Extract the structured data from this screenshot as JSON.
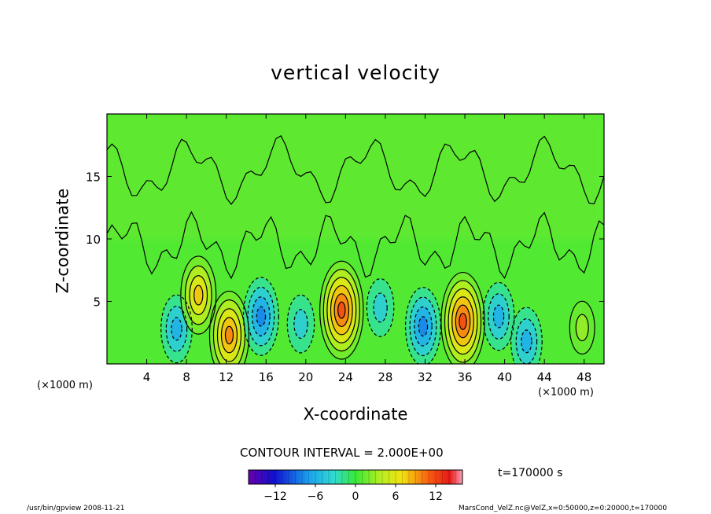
{
  "chart_data": {
    "type": "heatmap",
    "title": "vertical velocity",
    "xlabel": "X-coordinate",
    "ylabel": "Z-coordinate",
    "x_unit_note_left": "(×1000 m)",
    "x_unit_note_right": "(×1000 m)",
    "xlim": [
      0,
      50
    ],
    "ylim": [
      0,
      20
    ],
    "x_ticks": [
      4,
      8,
      12,
      16,
      20,
      24,
      28,
      32,
      36,
      40,
      44,
      48
    ],
    "y_ticks": [
      5,
      10,
      15
    ],
    "contour_interval_text": "CONTOUR INTERVAL = 2.000E+00",
    "time_text": "t=170000 s",
    "colorbar": {
      "ticks": [
        -12,
        -6,
        0,
        6,
        12
      ],
      "range": [
        -16,
        16
      ]
    },
    "cells": [
      {
        "x": 7.0,
        "z": 2.8,
        "value": -6
      },
      {
        "x": 9.2,
        "z": 5.5,
        "value": 8
      },
      {
        "x": 12.3,
        "z": 2.3,
        "value": 10
      },
      {
        "x": 15.5,
        "z": 3.8,
        "value": -8
      },
      {
        "x": 19.5,
        "z": 3.2,
        "value": -4
      },
      {
        "x": 23.6,
        "z": 4.3,
        "value": 12
      },
      {
        "x": 27.5,
        "z": 4.5,
        "value": -4
      },
      {
        "x": 31.8,
        "z": 3.0,
        "value": -8
      },
      {
        "x": 35.8,
        "z": 3.4,
        "value": 12
      },
      {
        "x": 39.4,
        "z": 3.8,
        "value": -6
      },
      {
        "x": 42.2,
        "z": 1.8,
        "value": -6
      },
      {
        "x": 47.8,
        "z": 2.9,
        "value": 3
      }
    ]
  },
  "footer": {
    "left": "/usr/bin/gpview   2008-11-21",
    "right": "MarsCond_VelZ.nc@VelZ,x=0:50000,z=0:20000,t=170000"
  }
}
